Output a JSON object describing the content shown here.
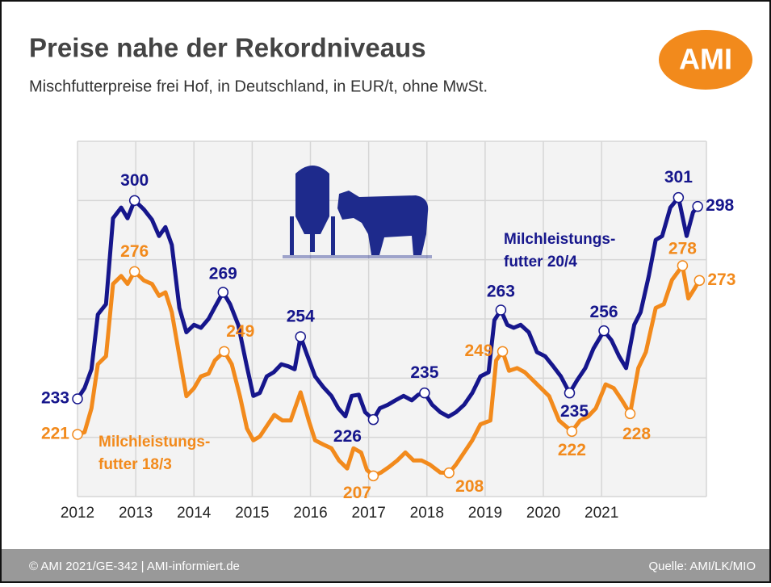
{
  "page": {
    "logo": "AMI",
    "footer_left": "© AMI 2021/GE-342 | AMI-informiert.de",
    "footer_right": "Quelle: AMI/LK/MIO"
  },
  "chart_data": {
    "type": "line",
    "title": "Preise nahe der Rekordniveaus",
    "subtitle": "Mischfutterpreise frei Hof, in Deutschland, in EUR/t, ohne MwSt.",
    "xlim": [
      2012,
      2022.8
    ],
    "xticks": [
      2012,
      2013,
      2014,
      2015,
      2016,
      2017,
      2018,
      2019,
      2020,
      2021
    ],
    "ylim": [
      200,
      320
    ],
    "yticks": [
      200,
      220,
      240,
      260,
      280,
      300,
      320
    ],
    "grid": true,
    "series": [
      {
        "name": "Milchleistungs-\nfutter 20/4",
        "color": "#16168c",
        "x": [
          2012.0,
          2012.12,
          2012.24,
          2012.35,
          2012.49,
          2012.61,
          2012.75,
          2012.86,
          2012.98,
          2013.14,
          2013.28,
          2013.4,
          2013.51,
          2013.62,
          2013.75,
          2013.87,
          2014.0,
          2014.12,
          2014.25,
          2014.36,
          2014.5,
          2014.62,
          2014.76,
          2014.9,
          2015.02,
          2015.13,
          2015.25,
          2015.37,
          2015.5,
          2015.62,
          2015.73,
          2015.83,
          2015.94,
          2016.08,
          2016.22,
          2016.36,
          2016.48,
          2016.6,
          2016.71,
          2016.83,
          2016.94,
          2017.08,
          2017.19,
          2017.33,
          2017.46,
          2017.6,
          2017.74,
          2017.85,
          2017.96,
          2018.09,
          2018.23,
          2018.37,
          2018.5,
          2018.64,
          2018.78,
          2018.92,
          2019.06,
          2019.16,
          2019.27,
          2019.38,
          2019.49,
          2019.61,
          2019.75,
          2019.89,
          2020.03,
          2020.17,
          2020.3,
          2020.45,
          2020.58,
          2020.72,
          2020.86,
          2021.04,
          2021.17,
          2021.3,
          2021.42,
          2021.56,
          2021.67,
          2021.81,
          2021.93,
          2022.04,
          2022.18,
          2022.32,
          2022.46,
          2022.57,
          2022.65
        ],
        "values": [
          233,
          236.6,
          243,
          261.5,
          265,
          294,
          297.6,
          294,
          300,
          297,
          293.5,
          288,
          291,
          285,
          263.7,
          255.5,
          258,
          257,
          260,
          264,
          269,
          265,
          258,
          244.7,
          234,
          235,
          240.6,
          242,
          244.7,
          244,
          243,
          254,
          248,
          240.6,
          237,
          234,
          229.8,
          227.1,
          234,
          234.4,
          228.5,
          226,
          229.8,
          231,
          232.5,
          234,
          232.5,
          234.4,
          235,
          231,
          228.5,
          227,
          228.5,
          231,
          235,
          240.6,
          242,
          259.6,
          263,
          258,
          257,
          258,
          255.5,
          248.8,
          247.4,
          244,
          240.6,
          235,
          239.3,
          243.4,
          250,
          256,
          252.8,
          247.4,
          243.4,
          258,
          262.3,
          274.5,
          286.7,
          288,
          297.6,
          301,
          288,
          296,
          298
        ],
        "value_labels": [
          "233",
          null,
          null,
          null,
          null,
          null,
          null,
          null,
          "300",
          null,
          null,
          null,
          null,
          null,
          null,
          null,
          null,
          null,
          null,
          null,
          "269",
          null,
          null,
          null,
          null,
          null,
          null,
          null,
          null,
          null,
          null,
          "254",
          null,
          null,
          null,
          null,
          null,
          null,
          null,
          null,
          null,
          "226",
          null,
          null,
          null,
          null,
          null,
          null,
          "235",
          null,
          null,
          null,
          null,
          null,
          null,
          null,
          null,
          null,
          "263",
          null,
          null,
          null,
          null,
          null,
          null,
          null,
          null,
          "235",
          null,
          null,
          null,
          "256",
          null,
          null,
          null,
          null,
          null,
          null,
          null,
          null,
          null,
          "301",
          null,
          null,
          "298"
        ]
      },
      {
        "name": "Milchleistungs-\nfutter 18/3",
        "color": "#f28a1c",
        "x": [
          2012.0,
          2012.12,
          2012.24,
          2012.35,
          2012.49,
          2012.61,
          2012.75,
          2012.86,
          2012.98,
          2013.14,
          2013.28,
          2013.4,
          2013.51,
          2013.62,
          2013.75,
          2013.87,
          2014.0,
          2014.12,
          2014.25,
          2014.36,
          2014.52,
          2014.65,
          2014.79,
          2014.91,
          2015.02,
          2015.13,
          2015.27,
          2015.38,
          2015.52,
          2015.66,
          2015.83,
          2015.97,
          2016.08,
          2016.22,
          2016.36,
          2016.49,
          2016.63,
          2016.74,
          2016.87,
          2016.97,
          2017.08,
          2017.21,
          2017.35,
          2017.49,
          2017.63,
          2017.77,
          2017.91,
          2018.05,
          2018.23,
          2018.38,
          2018.5,
          2018.64,
          2018.78,
          2018.92,
          2019.09,
          2019.19,
          2019.3,
          2019.41,
          2019.55,
          2019.68,
          2019.82,
          2019.96,
          2020.1,
          2020.27,
          2020.49,
          2020.63,
          2020.77,
          2020.9,
          2021.07,
          2021.21,
          2021.35,
          2021.49,
          2021.63,
          2021.76,
          2021.93,
          2022.07,
          2022.21,
          2022.39,
          2022.49,
          2022.6,
          2022.68
        ],
        "values": [
          221,
          221.7,
          229.8,
          244.7,
          247.4,
          271.8,
          274.5,
          271.8,
          276,
          273,
          271.8,
          267.8,
          269,
          262.3,
          247.4,
          233.9,
          236.6,
          240.6,
          241.5,
          246,
          249,
          244.7,
          233.9,
          223,
          219,
          220.3,
          224.4,
          227.6,
          225.7,
          225.7,
          235.2,
          225.7,
          219,
          217.6,
          216.3,
          212.2,
          209.5,
          216.3,
          214.9,
          209,
          207,
          208.1,
          210,
          212.2,
          214.9,
          212.2,
          212.2,
          210.8,
          208.1,
          208,
          210.8,
          214.9,
          219,
          224.4,
          225.7,
          246,
          249,
          242.5,
          243.4,
          242,
          239.3,
          236.6,
          233.9,
          225.7,
          222,
          225.7,
          227.1,
          229.8,
          237.9,
          236.6,
          232.5,
          228,
          243.4,
          248.8,
          263.7,
          265,
          273.2,
          278,
          266.9,
          270.4,
          273
        ],
        "value_labels": [
          "221",
          null,
          null,
          null,
          null,
          null,
          null,
          null,
          "276",
          null,
          null,
          null,
          null,
          null,
          null,
          null,
          null,
          null,
          null,
          null,
          "249",
          null,
          null,
          null,
          null,
          null,
          null,
          null,
          null,
          null,
          null,
          null,
          null,
          null,
          null,
          null,
          null,
          null,
          null,
          null,
          "207",
          null,
          null,
          null,
          null,
          null,
          null,
          null,
          null,
          "208",
          null,
          null,
          null,
          null,
          null,
          null,
          "249",
          null,
          null,
          null,
          null,
          null,
          null,
          null,
          "222",
          null,
          null,
          null,
          null,
          null,
          null,
          "228",
          null,
          null,
          null,
          null,
          null,
          "278",
          null,
          null,
          "273"
        ]
      }
    ]
  }
}
